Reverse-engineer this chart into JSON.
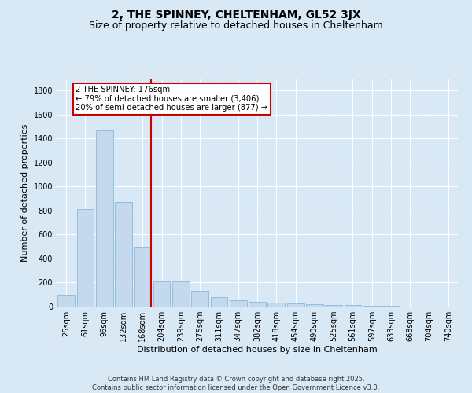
{
  "title": "2, THE SPINNEY, CHELTENHAM, GL52 3JX",
  "subtitle": "Size of property relative to detached houses in Cheltenham",
  "xlabel": "Distribution of detached houses by size in Cheltenham",
  "ylabel": "Number of detached properties",
  "bar_labels": [
    "25sqm",
    "61sqm",
    "96sqm",
    "132sqm",
    "168sqm",
    "204sqm",
    "239sqm",
    "275sqm",
    "311sqm",
    "347sqm",
    "382sqm",
    "418sqm",
    "454sqm",
    "490sqm",
    "525sqm",
    "561sqm",
    "597sqm",
    "633sqm",
    "668sqm",
    "704sqm",
    "740sqm"
  ],
  "bar_values": [
    100,
    810,
    1470,
    870,
    500,
    210,
    210,
    130,
    80,
    50,
    40,
    35,
    25,
    20,
    15,
    12,
    8,
    5,
    3,
    2,
    1
  ],
  "bar_color": "#c5d9ee",
  "bar_edge_color": "#8fb8d8",
  "vline_index": 4,
  "vline_color": "#cc0000",
  "annotation_text": "2 THE SPINNEY: 176sqm\n← 79% of detached houses are smaller (3,406)\n20% of semi-detached houses are larger (877) →",
  "annotation_box_facecolor": "#ffffff",
  "annotation_box_edgecolor": "#cc0000",
  "ylim": [
    0,
    1900
  ],
  "yticks": [
    0,
    200,
    400,
    600,
    800,
    1000,
    1200,
    1400,
    1600,
    1800
  ],
  "background_color": "#d8e8f5",
  "plot_bg_color": "#d8e8f5",
  "grid_color": "#ffffff",
  "title_fontsize": 10,
  "subtitle_fontsize": 9,
  "axis_label_fontsize": 8,
  "tick_fontsize": 7,
  "footer_line1": "Contains HM Land Registry data © Crown copyright and database right 2025.",
  "footer_line2": "Contains public sector information licensed under the Open Government Licence v3.0."
}
